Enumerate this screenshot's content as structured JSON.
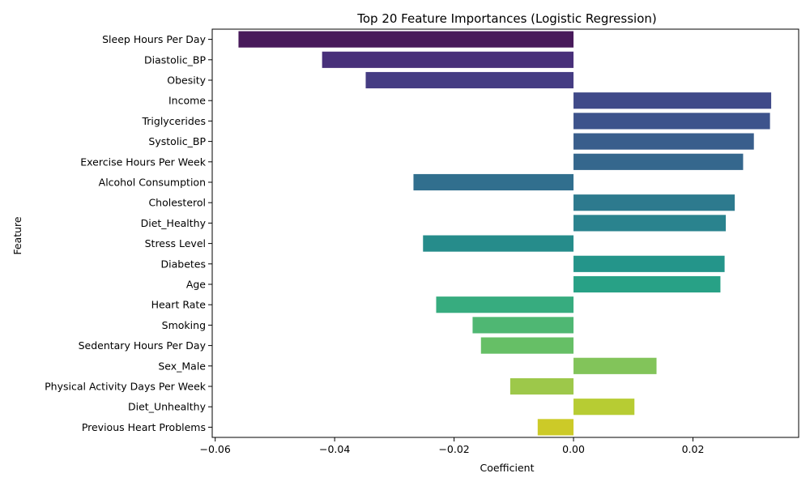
{
  "chart_data": {
    "type": "bar",
    "orientation": "horizontal",
    "title": "Top 20 Feature Importances (Logistic Regression)",
    "xlabel": "Coefficient",
    "ylabel": "Feature",
    "xlim": [
      -0.0605,
      0.0377
    ],
    "xticks": [
      -0.06,
      -0.04,
      -0.02,
      0.0,
      0.02
    ],
    "xtick_labels": [
      "−0.06",
      "−0.04",
      "−0.02",
      "0.00",
      "0.02"
    ],
    "grid": false,
    "palette": "viridis",
    "categories": [
      "Sleep Hours Per Day",
      "Diastolic_BP",
      "Obesity",
      "Income",
      "Triglycerides",
      "Systolic_BP",
      "Exercise Hours Per Week",
      "Alcohol Consumption",
      "Cholesterol",
      "Diet_Healthy",
      "Stress Level",
      "Diabetes",
      "Age",
      "Heart Rate",
      "Smoking",
      "Sedentary Hours Per Day",
      "Sex_Male",
      "Physical Activity Days Per Week",
      "Diet_Unhealthy",
      "Previous Heart Problems"
    ],
    "values": [
      -0.0561,
      -0.0421,
      -0.0348,
      0.0331,
      0.0329,
      0.0302,
      0.0284,
      -0.0268,
      0.027,
      0.0255,
      -0.0252,
      0.0253,
      0.0246,
      -0.023,
      -0.0169,
      -0.0155,
      0.0139,
      -0.0106,
      0.0102,
      -0.006
    ],
    "colors": [
      "#481a5b",
      "#48307a",
      "#453c83",
      "#404a89",
      "#3d538c",
      "#395e8c",
      "#35678d",
      "#316f8e",
      "#2d7a8e",
      "#2a838e",
      "#268c8b",
      "#24958a",
      "#28a186",
      "#37ac7f",
      "#4fb773",
      "#66bf66",
      "#82c45a",
      "#9dc84a",
      "#b7cc33",
      "#ccca28"
    ]
  }
}
